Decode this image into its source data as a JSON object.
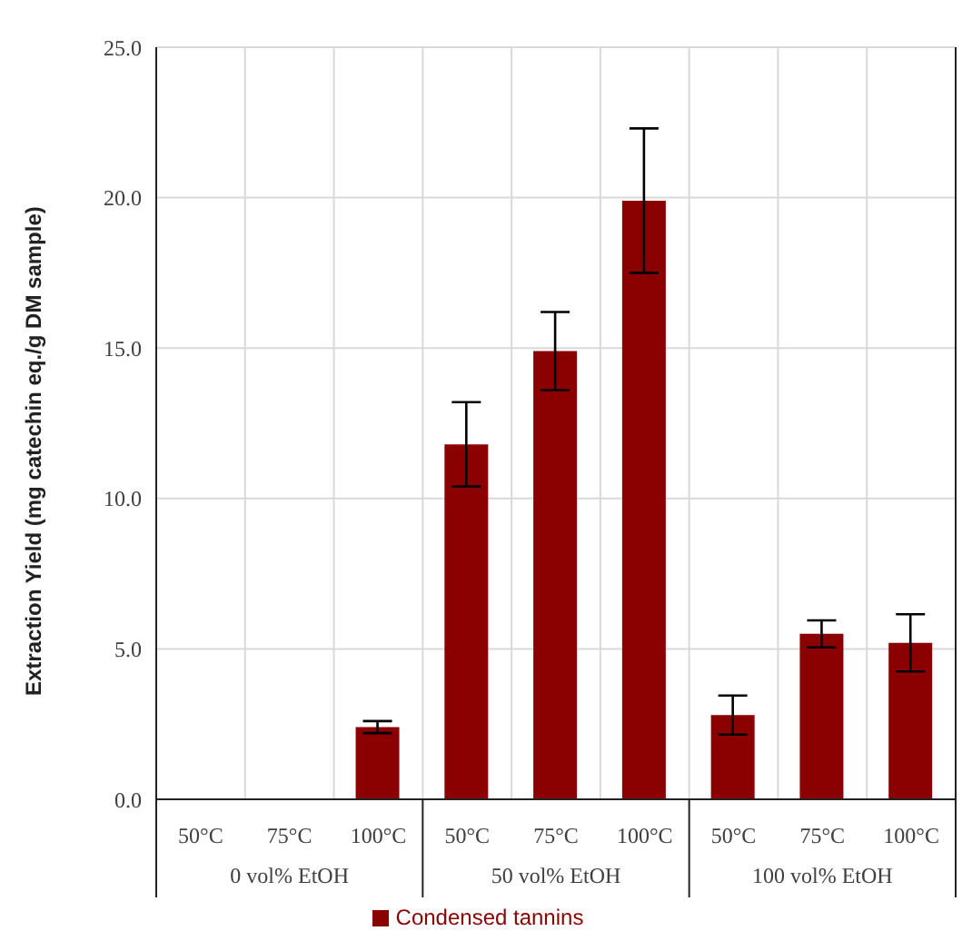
{
  "chart_data": {
    "type": "bar",
    "ylabel": "Extraction Yield (mg catechin eq./g DM sample)",
    "categories": [
      "50°C",
      "75°C",
      "100°C",
      "50°C",
      "75°C",
      "100°C",
      "50°C",
      "75°C",
      "100°C"
    ],
    "annotations": [
      "0 vol% EtOH",
      "50 vol% EtOH",
      "100 vol% EtOH"
    ],
    "series": [
      {
        "name": "Condensed tannins",
        "color": "#8b0000",
        "values": [
          0,
          0,
          2.4,
          11.8,
          14.9,
          19.9,
          2.8,
          5.5,
          5.2
        ],
        "errors": [
          null,
          null,
          0.2,
          1.4,
          1.3,
          2.4,
          0.65,
          0.45,
          0.95
        ]
      }
    ],
    "ylim": [
      0,
      25
    ],
    "yticks": [
      {
        "value": 0,
        "label": "0.0"
      },
      {
        "value": 5,
        "label": "5.0"
      },
      {
        "value": 10,
        "label": "10.0"
      },
      {
        "value": 15,
        "label": "15.0"
      },
      {
        "value": 20,
        "label": "20.0"
      },
      {
        "value": 25,
        "label": "25.0"
      }
    ],
    "grid": true,
    "legend": "bottom"
  }
}
